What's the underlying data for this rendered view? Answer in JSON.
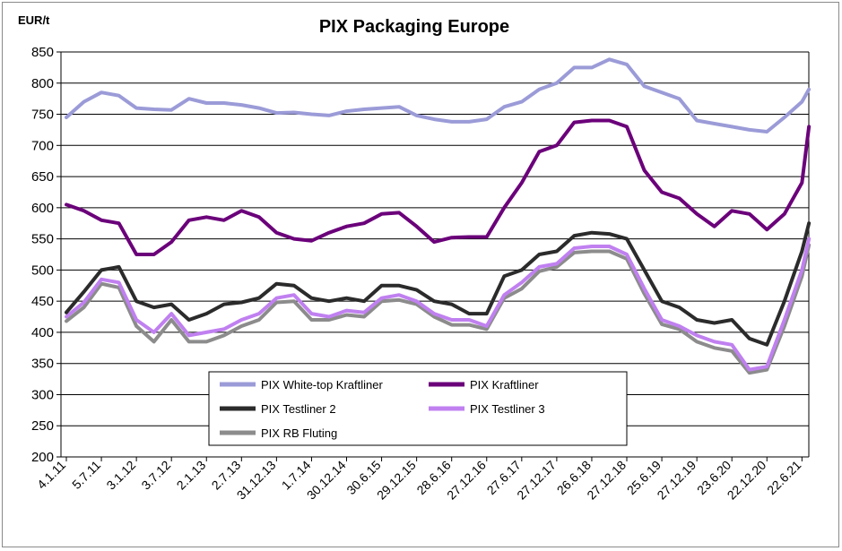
{
  "chart_data": {
    "type": "line",
    "title": "PIX Packaging Europe",
    "ylabel": "EUR/t",
    "xlabel": "",
    "ylim": [
      200,
      850
    ],
    "yticks": [
      200,
      250,
      300,
      350,
      400,
      450,
      500,
      550,
      600,
      650,
      700,
      750,
      800,
      850
    ],
    "grid": "horizontal",
    "legend_position": "bottom-center inside plot",
    "x_tick_labels": [
      "4.1.11",
      "5.7.11",
      "3.1.12",
      "3.7.12",
      "2.1.13",
      "2.7.13",
      "31.12.13",
      "1.7.14",
      "30.12.14",
      "30.6.15",
      "29.12.15",
      "28.6.16",
      "27.12.16",
      "27.6.17",
      "27.12.17",
      "26.6.18",
      "27.12.18",
      "25.6.19",
      "27.12.19",
      "23.6.20",
      "22.12.20",
      "22.6.21"
    ],
    "x_index": [
      0,
      0.5,
      1,
      1.5,
      2,
      2.5,
      3,
      3.5,
      4,
      4.5,
      5,
      5.5,
      6,
      6.5,
      7,
      7.5,
      8,
      8.5,
      9,
      9.5,
      10,
      10.5,
      11,
      11.5,
      12,
      12.5,
      13,
      13.5,
      14,
      14.5,
      15,
      15.5,
      16,
      16.5,
      17,
      17.5,
      18,
      18.5,
      19,
      19.5,
      20,
      20.5,
      21,
      21.2
    ],
    "series": [
      {
        "name": "PIX White-top Kraftliner",
        "color": "#9b9bd8",
        "values": [
          745,
          770,
          785,
          780,
          760,
          758,
          757,
          775,
          768,
          768,
          765,
          760,
          752,
          753,
          750,
          748,
          755,
          758,
          760,
          762,
          748,
          742,
          738,
          738,
          742,
          762,
          770,
          790,
          800,
          825,
          825,
          838,
          830,
          795,
          785,
          775,
          740,
          735,
          730,
          725,
          722,
          745,
          770,
          790
        ]
      },
      {
        "name": "PIX Kraftliner",
        "color": "#6b007a",
        "values": [
          605,
          595,
          580,
          575,
          525,
          525,
          545,
          580,
          585,
          580,
          595,
          585,
          560,
          550,
          547,
          560,
          570,
          575,
          590,
          592,
          570,
          545,
          552,
          553,
          553,
          600,
          640,
          690,
          700,
          737,
          740,
          740,
          730,
          660,
          625,
          615,
          590,
          570,
          595,
          590,
          565,
          590,
          640,
          730
        ]
      },
      {
        "name": "PIX Testliner 2",
        "color": "#2b2b2b",
        "values": [
          432,
          465,
          500,
          505,
          450,
          440,
          445,
          420,
          430,
          445,
          448,
          455,
          478,
          475,
          455,
          450,
          455,
          450,
          475,
          475,
          468,
          450,
          445,
          430,
          430,
          490,
          500,
          525,
          530,
          555,
          560,
          558,
          550,
          500,
          450,
          440,
          420,
          415,
          420,
          390,
          380,
          450,
          530,
          575
        ]
      },
      {
        "name": "PIX Testliner 3",
        "color": "#c080f0",
        "values": [
          425,
          448,
          485,
          480,
          420,
          400,
          430,
          395,
          400,
          405,
          420,
          430,
          455,
          460,
          430,
          425,
          435,
          432,
          455,
          460,
          450,
          430,
          420,
          420,
          410,
          460,
          480,
          505,
          510,
          535,
          538,
          538,
          525,
          470,
          420,
          410,
          395,
          385,
          380,
          340,
          345,
          420,
          500,
          550
        ]
      },
      {
        "name": "PIX RB Fluting",
        "color": "#8c8c8c",
        "values": [
          418,
          440,
          478,
          472,
          410,
          385,
          420,
          385,
          385,
          395,
          410,
          420,
          448,
          450,
          420,
          420,
          428,
          425,
          450,
          452,
          445,
          425,
          412,
          412,
          405,
          455,
          470,
          498,
          505,
          528,
          530,
          530,
          518,
          462,
          413,
          405,
          385,
          375,
          370,
          335,
          340,
          410,
          490,
          540
        ]
      }
    ]
  }
}
